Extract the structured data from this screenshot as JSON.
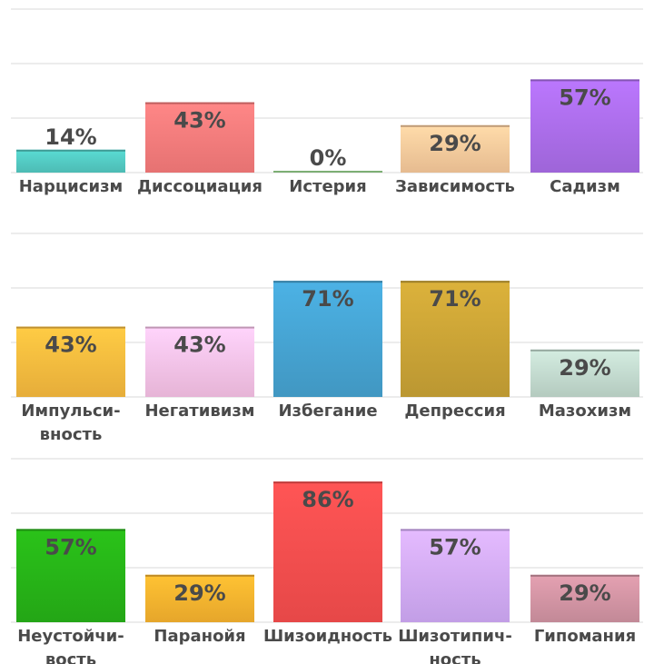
{
  "chart_data": [
    {
      "type": "bar",
      "categories": [
        "Нарцисизм",
        "Диссоциация",
        "Истерия",
        "Зависимость",
        "Садизм"
      ],
      "values": [
        14,
        43,
        0,
        29,
        57
      ],
      "value_labels": [
        "14%",
        "43%",
        "0%",
        "29%",
        "57%"
      ],
      "colors": [
        "#55d0c8",
        "#ff7f7f",
        "#a6e99a",
        "#ffd0a0",
        "#b070f0"
      ],
      "ylim": [
        0,
        100
      ],
      "grid": true
    },
    {
      "type": "bar",
      "categories": [
        "Импульси-\nвность",
        "Негативизм",
        "Избегание",
        "Депрессия",
        "Мазохизм"
      ],
      "values": [
        43,
        43,
        71,
        71,
        29
      ],
      "value_labels": [
        "43%",
        "43%",
        "71%",
        "71%",
        "29%"
      ],
      "colors": [
        "#ffc040",
        "#ffc8ee",
        "#48a8d8",
        "#d0a838",
        "#c8e0d4"
      ],
      "ylim": [
        0,
        100
      ],
      "grid": true
    },
    {
      "type": "bar",
      "categories": [
        "Неустойчи-\nвость",
        "Паранойя",
        "Шизоидность",
        "Шизотипич-\nность",
        "Гипомания"
      ],
      "values": [
        57,
        29,
        86,
        57,
        29
      ],
      "value_labels": [
        "57%",
        "29%",
        "86%",
        "57%",
        "29%"
      ],
      "colors": [
        "#28b818",
        "#ffb830",
        "#ff5050",
        "#d8b0ff",
        "#d898a8"
      ],
      "ylim": [
        0,
        100
      ],
      "grid": true
    }
  ]
}
